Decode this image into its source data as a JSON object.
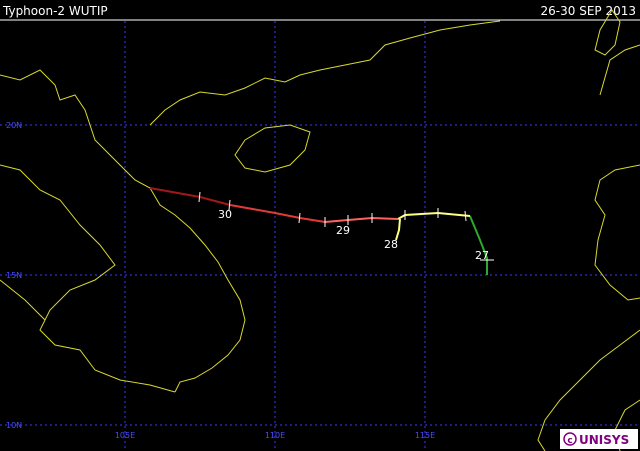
{
  "header": {
    "title": "Typhoon-2 WUTIP",
    "date": "26-30 SEP 2013"
  },
  "grid": {
    "lat_labels": [
      "20N",
      "15N",
      "10N"
    ],
    "lon_labels": [
      "105E",
      "110E",
      "115E"
    ]
  },
  "track": {
    "day_labels": [
      "30",
      "29",
      "28",
      "27"
    ]
  },
  "logo": "UNISYS"
}
